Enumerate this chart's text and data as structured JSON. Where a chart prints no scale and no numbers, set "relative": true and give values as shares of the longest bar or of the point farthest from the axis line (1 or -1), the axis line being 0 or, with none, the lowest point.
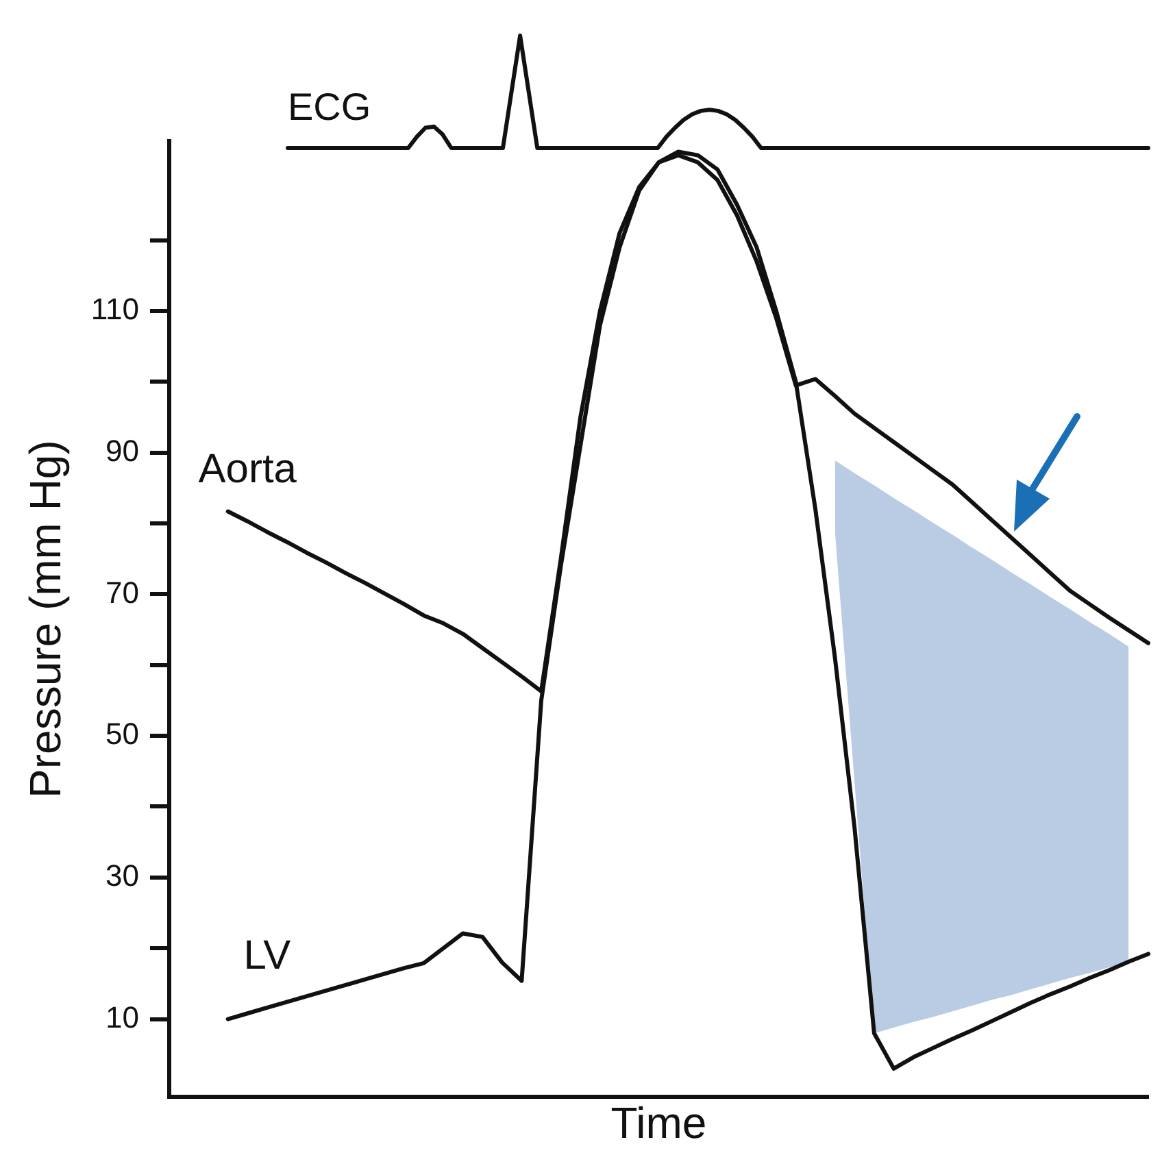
{
  "chart_data": [
    {
      "type": "line",
      "relative": true,
      "categories": [
        null,
        null,
        null,
        null,
        null,
        null,
        null,
        null,
        null,
        null,
        null,
        null,
        null,
        null,
        null,
        null,
        null,
        null,
        null,
        null,
        null,
        null,
        null,
        null,
        null,
        null,
        null,
        null,
        null,
        null,
        null,
        null,
        null,
        null,
        null,
        null,
        null,
        null,
        null,
        null,
        null,
        null,
        null,
        null,
        null,
        null,
        null,
        null,
        null,
        null,
        null,
        null,
        null,
        null,
        null,
        null,
        null,
        null,
        null,
        null,
        null,
        null,
        null,
        null,
        null,
        null,
        null,
        null,
        null,
        null,
        null,
        null,
        null,
        null,
        null,
        null,
        null,
        null,
        null,
        null,
        null,
        null,
        null,
        null,
        null,
        null,
        null,
        null,
        null,
        null,
        null,
        null,
        null,
        null,
        null,
        null,
        null,
        null,
        null,
        null,
        null
      ],
      "tick_labels": false,
      "marker": "none",
      "line_style": "solid",
      "series": [
        {
          "name": "ECG",
          "color": "#111111",
          "values": [
            0,
            0,
            0,
            0,
            0,
            0,
            0,
            0,
            0,
            0,
            0,
            0,
            0,
            0,
            0,
            0.1,
            0.18,
            0.19,
            0.12,
            0,
            0,
            0,
            0,
            0,
            0,
            0,
            0.5,
            1,
            0.5,
            0,
            0,
            0,
            0,
            0,
            0,
            0,
            0,
            0,
            0,
            0,
            0,
            0,
            0,
            0,
            0.1,
            0.18,
            0.25,
            0.3,
            0.33,
            0.34,
            0.33,
            0.3,
            0.25,
            0.18,
            0.1,
            0,
            0,
            0,
            0,
            0,
            0,
            0,
            0,
            0,
            0,
            0,
            0,
            0,
            0,
            0,
            0,
            0,
            0,
            0,
            0,
            0,
            0,
            0,
            0,
            0,
            0,
            0,
            0,
            0,
            0,
            0,
            0,
            0,
            0,
            0,
            0,
            0,
            0,
            0,
            0,
            0,
            0,
            0,
            0,
            0,
            0
          ]
        }
      ]
    },
    {
      "type": "line",
      "xlabel": "Time",
      "ylabel": "Pressure (mm Hg)",
      "categories": [
        null,
        null,
        null,
        null,
        null,
        null,
        null,
        null,
        null,
        null,
        null,
        null,
        null,
        null,
        null,
        null,
        null,
        null,
        null,
        null,
        null,
        null,
        null,
        null,
        null,
        null,
        null,
        null,
        null,
        null,
        null,
        null,
        null,
        null,
        null,
        null,
        null,
        null,
        null,
        null,
        null,
        null,
        null,
        null,
        null,
        null,
        null,
        null,
        null,
        null,
        null
      ],
      "ylim": [
        -1,
        134
      ],
      "yticks": [
        {
          "value": 10,
          "label": "10"
        },
        {
          "value": 20,
          "label": null
        },
        {
          "value": 30,
          "label": "30"
        },
        {
          "value": 40,
          "label": null
        },
        {
          "value": 50,
          "label": "50"
        },
        {
          "value": 60,
          "label": null
        },
        {
          "value": 70,
          "label": "70"
        },
        {
          "value": 80,
          "label": null
        },
        {
          "value": 90,
          "label": "90"
        },
        {
          "value": 100,
          "label": null
        },
        {
          "value": 110,
          "label": "110"
        },
        {
          "value": 120,
          "label": null
        }
      ],
      "tick_labels": "y",
      "marker": "none",
      "line_style": "solid",
      "series": [
        {
          "name": "Aorta",
          "color": "#111111",
          "values": [
            null,
            null,
            null,
            81.7,
            80.3,
            78.8,
            77.4,
            75.9,
            74.5,
            73.0,
            71.6,
            70.1,
            68.6,
            67.0,
            65.9,
            64.4,
            62.4,
            60.4,
            58.4,
            56.3,
            75,
            95,
            110,
            121,
            127.5,
            131,
            132,
            131,
            128.5,
            123.5,
            117,
            109,
            99.5,
            100.4,
            98,
            95.5,
            93.5,
            91.5,
            89.5,
            87.5,
            85.5,
            83,
            80.5,
            78,
            75.5,
            73,
            70.5,
            68.6,
            66.7,
            64.9,
            63.1
          ]
        },
        {
          "name": "LV",
          "color": "#111111",
          "values": [
            null,
            null,
            null,
            10,
            10.8,
            11.6,
            12.4,
            13.2,
            14.0,
            14.8,
            15.6,
            16.4,
            17.2,
            17.9,
            20,
            22.1,
            21.6,
            18,
            15.4,
            55,
            74,
            91,
            108,
            119,
            127,
            131,
            132.5,
            132,
            130,
            125,
            119,
            110,
            100,
            82,
            61,
            37,
            8,
            3.0,
            4.6,
            5.9,
            7.2,
            8.4,
            9.7,
            11,
            12.3,
            13.5,
            14.6,
            15.8,
            16.9,
            18.1,
            19.2
          ]
        },
        {
          "type": "area",
          "color": "#b9cce4",
          "values": [
            null,
            null,
            null,
            null,
            null,
            null,
            null,
            null,
            null,
            null,
            null,
            null,
            null,
            null,
            null,
            null,
            null,
            null,
            null,
            null,
            null,
            null,
            null,
            null,
            null,
            null,
            null,
            null,
            null,
            null,
            null,
            null,
            null,
            null,
            null,
            null,
            null,
            null,
            null,
            null,
            null,
            null,
            null,
            null,
            null,
            null,
            null,
            null,
            null,
            null,
            null
          ],
          "lower": [
            null,
            null,
            null,
            null,
            null,
            null,
            null,
            null,
            null,
            null,
            null,
            null,
            null,
            null,
            null,
            null,
            null,
            null,
            null,
            null,
            null,
            null,
            null,
            null,
            null,
            null,
            null,
            null,
            null,
            null,
            null,
            null,
            null,
            null,
            78.8,
            43.4,
            8,
            8.8,
            9.6,
            10.3,
            11.1,
            11.9,
            12.7,
            13.4,
            14.2,
            15,
            15.8,
            16.5,
            17.3,
            18.1,
            null
          ],
          "upper": [
            null,
            null,
            null,
            null,
            null,
            null,
            null,
            null,
            null,
            null,
            null,
            null,
            null,
            null,
            null,
            null,
            null,
            null,
            null,
            null,
            null,
            null,
            null,
            null,
            null,
            null,
            null,
            null,
            null,
            null,
            null,
            null,
            null,
            null,
            88.9,
            87.1,
            85.4,
            83.6,
            81.9,
            80.1,
            78.4,
            76.6,
            74.9,
            73.1,
            71.4,
            69.6,
            67.9,
            66.1,
            64.4,
            62.6,
            null
          ]
        }
      ]
    }
  ]
}
